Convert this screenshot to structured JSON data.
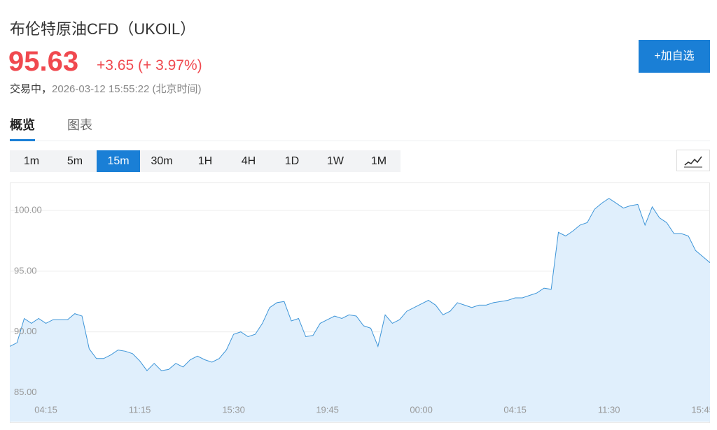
{
  "header": {
    "title": "布伦特原油CFD（UKOIL）",
    "price": "95.63",
    "change": "+3.65",
    "change_pct": "(+ 3.97%)",
    "status": "交易中，",
    "timestamp": "2026-03-12 15:55:22 (北京时间)",
    "button": "+加自选"
  },
  "tabs": [
    "概览",
    "图表"
  ],
  "intervals": [
    "1m",
    "5m",
    "15m",
    "30m",
    "1H",
    "4H",
    "1D",
    "1W",
    "1M"
  ],
  "chart_data": {
    "type": "area",
    "color": "#3d95d8",
    "fill": "#e0effc",
    "grid": true,
    "ylim": [
      82.6,
      102.25
    ],
    "yticks": [
      {
        "value": 85,
        "label": "85.00"
      },
      {
        "value": 90,
        "label": "90.00"
      },
      {
        "value": 95,
        "label": "95.00"
      },
      {
        "value": 100,
        "label": "100.00"
      }
    ],
    "categories": [
      null,
      null,
      null,
      null,
      null,
      "04:15",
      null,
      null,
      null,
      null,
      null,
      null,
      null,
      null,
      null,
      null,
      null,
      null,
      "11:15",
      null,
      null,
      null,
      null,
      null,
      null,
      null,
      null,
      null,
      null,
      null,
      null,
      "15:30",
      null,
      null,
      null,
      null,
      null,
      null,
      null,
      null,
      null,
      null,
      null,
      null,
      "19:45",
      null,
      null,
      null,
      null,
      null,
      null,
      null,
      null,
      null,
      null,
      null,
      null,
      "00:00",
      null,
      null,
      null,
      null,
      null,
      null,
      null,
      null,
      null,
      null,
      null,
      null,
      "04:15",
      null,
      null,
      null,
      null,
      null,
      null,
      null,
      null,
      null,
      null,
      null,
      null,
      "11:30",
      null,
      null,
      null,
      null,
      null,
      null,
      null,
      null,
      null,
      null,
      null,
      null,
      "15:45",
      null
    ],
    "values": [
      88.8,
      89.1,
      91.1,
      90.7,
      91.1,
      90.7,
      91.0,
      91.0,
      91.0,
      91.5,
      91.3,
      88.6,
      87.8,
      87.8,
      88.1,
      88.5,
      88.4,
      88.2,
      87.6,
      86.8,
      87.4,
      86.8,
      86.9,
      87.4,
      87.1,
      87.7,
      88.0,
      87.7,
      87.5,
      87.8,
      88.5,
      89.8,
      90.0,
      89.6,
      89.8,
      90.7,
      92.0,
      92.4,
      92.5,
      90.9,
      91.1,
      89.6,
      89.7,
      90.7,
      91.0,
      91.3,
      91.1,
      91.4,
      91.3,
      90.5,
      90.3,
      88.8,
      91.4,
      90.7,
      91.0,
      91.7,
      92.0,
      92.3,
      92.6,
      92.2,
      91.4,
      91.7,
      92.4,
      92.2,
      92.0,
      92.2,
      92.2,
      92.4,
      92.5,
      92.6,
      92.8,
      92.8,
      93.0,
      93.2,
      93.6,
      93.5,
      98.2,
      97.9,
      98.3,
      98.8,
      99.0,
      100.1,
      100.6,
      101.0,
      100.6,
      100.2,
      100.4,
      100.5,
      98.8,
      100.3,
      99.4,
      99.0,
      98.1,
      98.1,
      97.9,
      96.7,
      96.2,
      95.7
    ]
  }
}
